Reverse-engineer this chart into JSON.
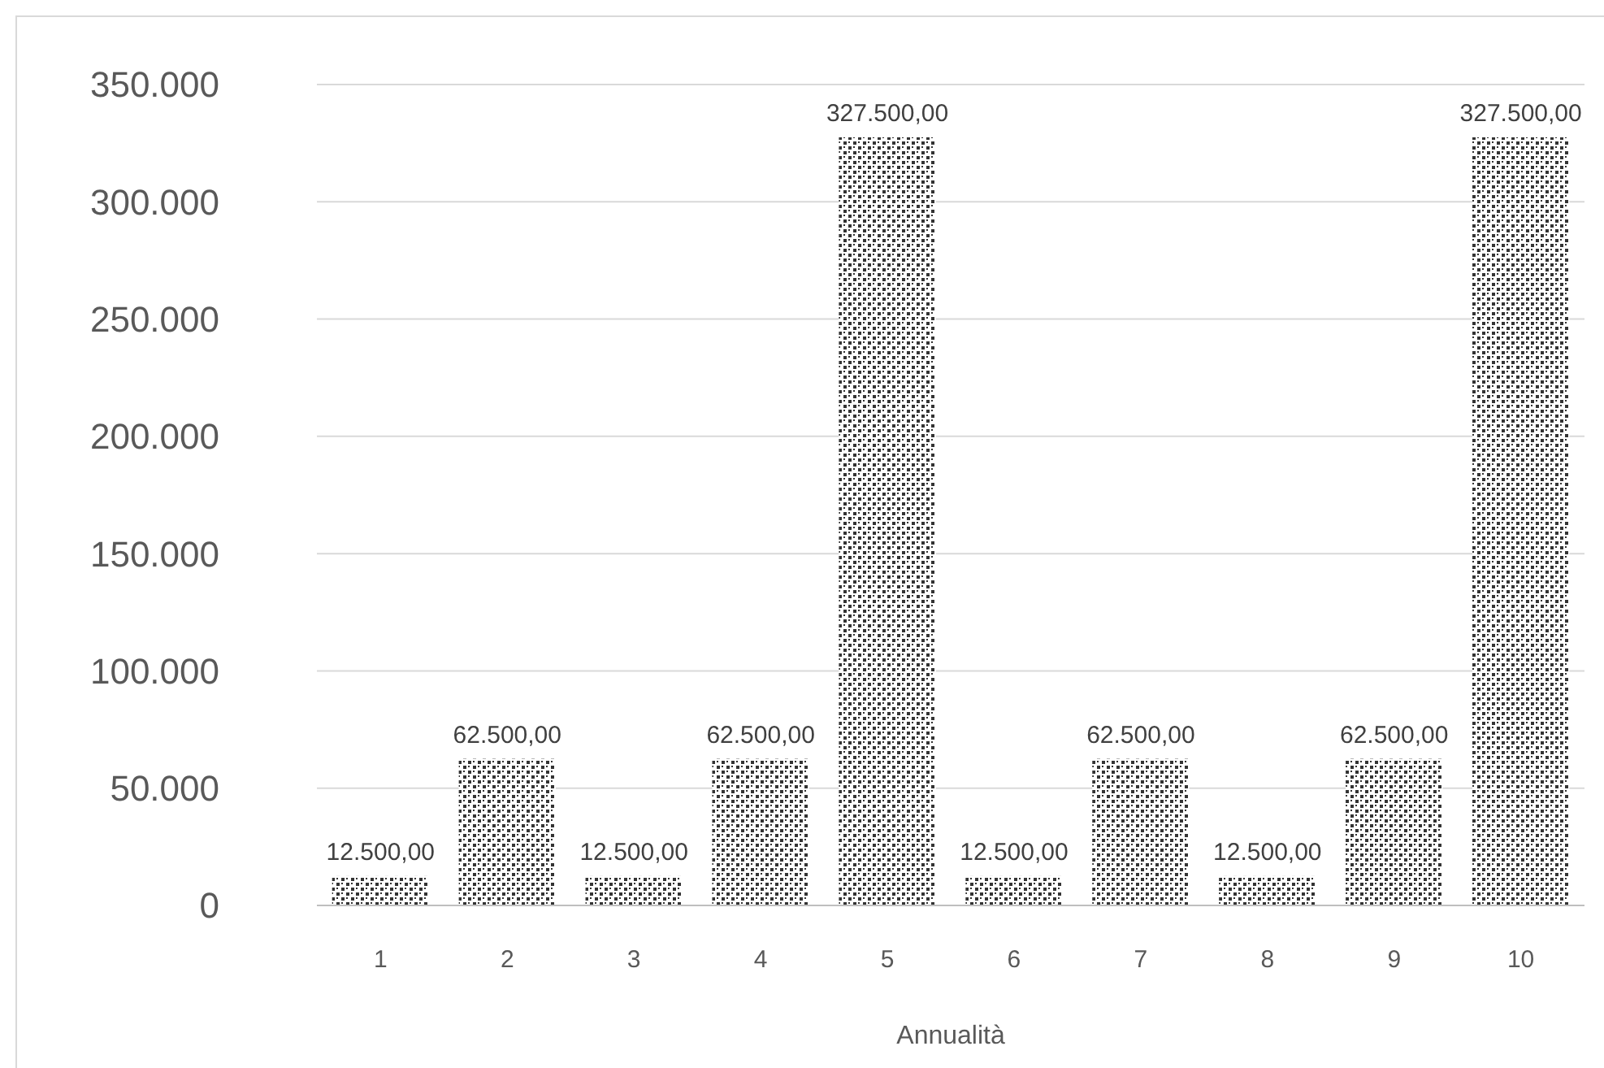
{
  "chart_data": {
    "type": "bar",
    "xlabel": "Annualità",
    "categories": [
      "1",
      "2",
      "3",
      "4",
      "5",
      "6",
      "7",
      "8",
      "9",
      "10"
    ],
    "values": [
      12500,
      62500,
      12500,
      62500,
      327500,
      12500,
      62500,
      12500,
      62500,
      327500
    ],
    "value_labels": [
      "12.500,00",
      "62.500,00",
      "12.500,00",
      "62.500,00",
      "327.500,00",
      "12.500,00",
      "62.500,00",
      "12.500,00",
      "62.500,00",
      "327.500,00"
    ],
    "color": "#333333",
    "ylim": [
      0,
      350000
    ],
    "yticks": [
      {
        "value": 0,
        "label": "0"
      },
      {
        "value": 50000,
        "label": "50.000"
      },
      {
        "value": 100000,
        "label": "100.000"
      },
      {
        "value": 150000,
        "label": "150.000"
      },
      {
        "value": 200000,
        "label": "200.000"
      },
      {
        "value": 250000,
        "label": "250.000"
      },
      {
        "value": 300000,
        "label": "300.000"
      },
      {
        "value": 350000,
        "label": "350.000"
      }
    ],
    "grid": "y"
  }
}
